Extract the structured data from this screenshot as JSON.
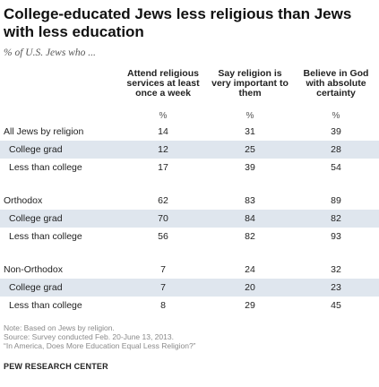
{
  "chart_data": {
    "type": "table",
    "title": "College-educated Jews less religious than Jews with less education",
    "subtitle": "% of U.S. Jews who ...",
    "columns": [
      "Attend religious services at least once a week",
      "Say religion is very important to them",
      "Believe in God with absolute certainty"
    ],
    "unit": "%",
    "rows": [
      {
        "label": "All Jews by religion",
        "values": [
          "14",
          "31",
          "39"
        ]
      },
      {
        "label": "College grad",
        "values": [
          "12",
          "25",
          "28"
        ]
      },
      {
        "label": "Less than college",
        "values": [
          "17",
          "39",
          "54"
        ]
      },
      {
        "label": "Orthodox",
        "values": [
          "62",
          "83",
          "89"
        ]
      },
      {
        "label": "College grad",
        "values": [
          "70",
          "84",
          "82"
        ]
      },
      {
        "label": "Less than college",
        "values": [
          "56",
          "82",
          "93"
        ]
      },
      {
        "label": "Non-Orthodox",
        "values": [
          "7",
          "24",
          "32"
        ]
      },
      {
        "label": "College grad",
        "values": [
          "7",
          "20",
          "23"
        ]
      },
      {
        "label": "Less than college",
        "values": [
          "8",
          "29",
          "45"
        ]
      }
    ]
  },
  "notes": [
    "Note: Based on Jews by religion.",
    "Source: Survey conducted Feb. 20-June 13, 2013.",
    "“In America, Does More Education Equal Less Religion?”"
  ],
  "source": "PEW RESEARCH CENTER",
  "colors": {
    "row_shade": "#dfe6ee",
    "note_text": "#8a8a8a"
  }
}
